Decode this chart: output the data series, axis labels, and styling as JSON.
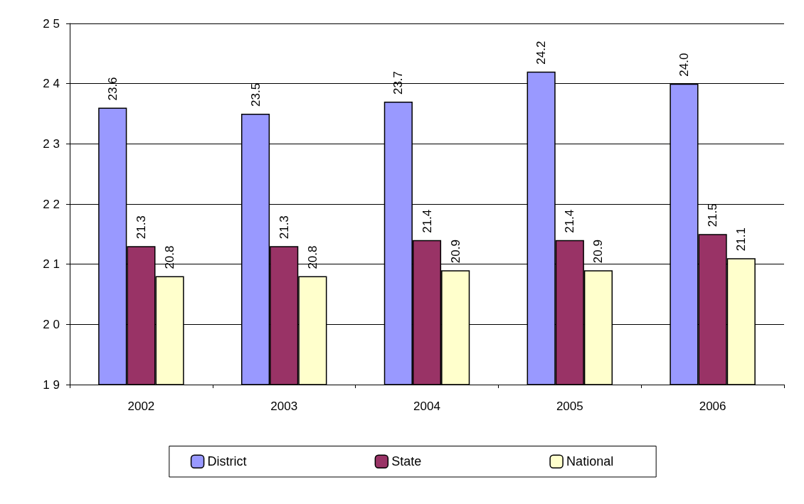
{
  "chart_data": {
    "type": "bar",
    "categories": [
      "2002",
      "2003",
      "2004",
      "2005",
      "2006"
    ],
    "series": [
      {
        "name": "District",
        "color": "#9999ff",
        "values": [
          23.6,
          23.5,
          23.7,
          24.2,
          24.0
        ],
        "value_labels": [
          "23.6",
          "23.5",
          "23.7",
          "24.2",
          "24.0"
        ]
      },
      {
        "name": "State",
        "color": "#993366",
        "values": [
          21.3,
          21.3,
          21.4,
          21.4,
          21.5
        ],
        "value_labels": [
          "21.3",
          "21.3",
          "21.4",
          "21.4",
          "21.5"
        ]
      },
      {
        "name": "National",
        "color": "#ffffcc",
        "values": [
          20.8,
          20.8,
          20.9,
          20.9,
          21.1
        ],
        "value_labels": [
          "20.8",
          "20.8",
          "20.9",
          "20.9",
          "21.1"
        ]
      }
    ],
    "ylim": [
      19,
      25
    ],
    "yticks": [
      19,
      20,
      21,
      22,
      23,
      24,
      25
    ],
    "grid": "y",
    "legend": "bottom"
  }
}
